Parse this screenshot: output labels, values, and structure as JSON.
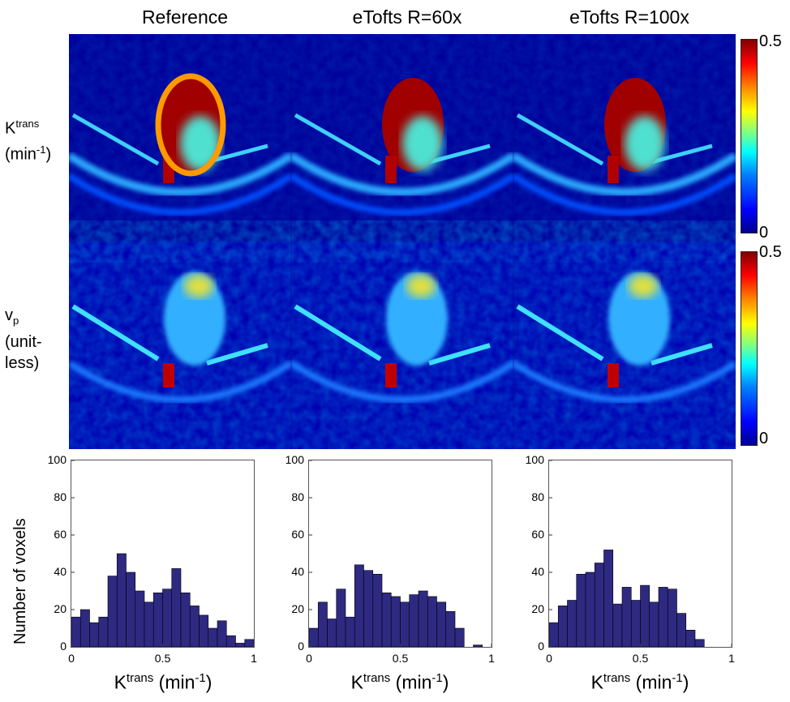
{
  "column_titles": [
    "Reference",
    "eTofts R=60x",
    "eTofts R=100x"
  ],
  "row_labels": {
    "ktrans": {
      "symbol": "K",
      "sup": "trans",
      "unit_prefix": "(min",
      "unit_sup": "-1",
      "unit_suffix": ")"
    },
    "vp": {
      "symbol": "v",
      "sub": "p",
      "line2": "(unit-",
      "line3": "less)"
    }
  },
  "colorbars": [
    {
      "max_label": "0.5",
      "min_label": "0"
    },
    {
      "max_label": "0.5",
      "min_label": "0"
    }
  ],
  "colormap": [
    "#00008f",
    "#0000ff",
    "#0080ff",
    "#00ffff",
    "#80ff80",
    "#ffff00",
    "#ff8000",
    "#ff0000",
    "#800000"
  ],
  "histogram_common": {
    "ylabel": "Number of voxels",
    "xlabel_main": "K",
    "xlabel_sup": "trans",
    "xlabel_unit": " (min",
    "xlabel_unit_sup": "-1",
    "xlabel_close": ")",
    "bar_color": "#2e2a82",
    "xticks": [
      "0",
      "0.5",
      "1"
    ],
    "yticks": [
      "0",
      "20",
      "40",
      "60",
      "80",
      "100"
    ]
  },
  "chart_data": [
    {
      "type": "bar",
      "title": "Reference",
      "xlim": [
        0,
        1
      ],
      "ylim": [
        0,
        100
      ],
      "bin_width": 0.05,
      "bin_starts": [
        0,
        0.05,
        0.1,
        0.15,
        0.2,
        0.25,
        0.3,
        0.35,
        0.4,
        0.45,
        0.5,
        0.55,
        0.6,
        0.65,
        0.7,
        0.75,
        0.8,
        0.85,
        0.9,
        0.95
      ],
      "values": [
        16,
        20,
        13,
        16,
        38,
        50,
        40,
        30,
        24,
        29,
        31,
        42,
        29,
        22,
        17,
        10,
        14,
        6,
        2,
        4
      ]
    },
    {
      "type": "bar",
      "title": "eTofts R=60x",
      "xlim": [
        0,
        1
      ],
      "ylim": [
        0,
        100
      ],
      "bin_width": 0.05,
      "bin_starts": [
        0,
        0.05,
        0.1,
        0.15,
        0.2,
        0.25,
        0.3,
        0.35,
        0.4,
        0.45,
        0.5,
        0.55,
        0.6,
        0.65,
        0.7,
        0.75,
        0.8,
        0.85,
        0.9,
        0.95
      ],
      "values": [
        10,
        24,
        15,
        31,
        16,
        44,
        41,
        39,
        29,
        27,
        24,
        28,
        30,
        27,
        24,
        19,
        10,
        0,
        1,
        0
      ]
    },
    {
      "type": "bar",
      "title": "eTofts R=100x",
      "xlim": [
        0,
        1
      ],
      "ylim": [
        0,
        100
      ],
      "bin_width": 0.05,
      "bin_starts": [
        0,
        0.05,
        0.1,
        0.15,
        0.2,
        0.25,
        0.3,
        0.35,
        0.4,
        0.45,
        0.5,
        0.55,
        0.6,
        0.65,
        0.7,
        0.75,
        0.8,
        0.85,
        0.9,
        0.95
      ],
      "values": [
        13,
        22,
        25,
        39,
        40,
        45,
        52,
        23,
        32,
        25,
        33,
        24,
        32,
        31,
        18,
        9,
        4,
        0,
        0,
        0
      ]
    }
  ]
}
